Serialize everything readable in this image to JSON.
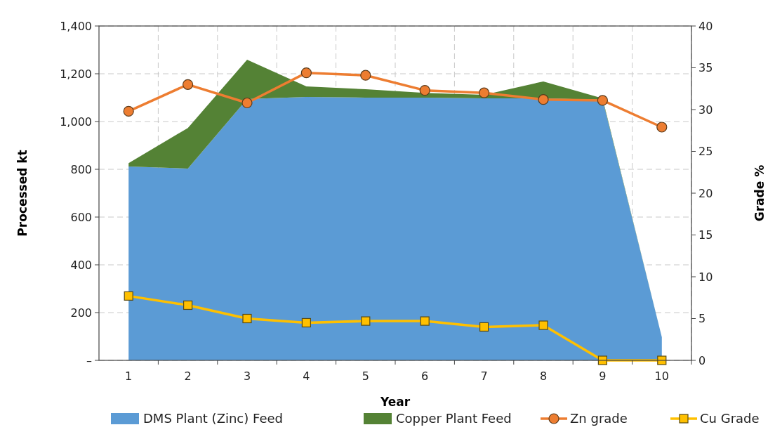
{
  "chart_data": {
    "type": "area",
    "xlabel": "Year",
    "ylabel": "Processed kt",
    "y2label": "Grade %",
    "categories": [
      "1",
      "2",
      "3",
      "4",
      "5",
      "6",
      "7",
      "8",
      "9",
      "10"
    ],
    "stacked": true,
    "grid": true,
    "legend": "bottom",
    "ylim": [
      0,
      1400
    ],
    "yticks": [
      {
        "value": 0,
        "label": "–"
      },
      {
        "value": 200,
        "label": "200"
      },
      {
        "value": 400,
        "label": "400"
      },
      {
        "value": 600,
        "label": "600"
      },
      {
        "value": 800,
        "label": "800"
      },
      {
        "value": 1000,
        "label": "1,000"
      },
      {
        "value": 1200,
        "label": "1,200"
      },
      {
        "value": 1400,
        "label": "1,400"
      }
    ],
    "y2lim": [
      0,
      40
    ],
    "y2ticks": [
      0,
      5,
      10,
      15,
      20,
      25,
      30,
      35,
      40
    ],
    "series": [
      {
        "name": "DMS Plant (Zinc) Feed",
        "color": "#5b9bd5",
        "values": [
          812,
          803,
          1094,
          1103,
          1100,
          1100,
          1097,
          1097,
          1091,
          97
        ]
      },
      {
        "name": "Copper Plant Feed",
        "color": "#548235",
        "values": [
          14,
          170,
          165,
          44,
          35,
          20,
          15,
          71,
          6,
          0
        ]
      },
      {
        "name": "Zn grade",
        "type": "line",
        "axis": "y2",
        "marker": "circle",
        "color": "#ed7d31",
        "values": [
          29.8,
          33.0,
          30.8,
          34.4,
          34.1,
          32.3,
          32.0,
          31.2,
          31.1,
          27.9
        ]
      },
      {
        "name": "Cu Grade",
        "type": "line",
        "axis": "y2",
        "marker": "square",
        "color": "#ffc000",
        "values": [
          7.7,
          6.6,
          5.0,
          4.5,
          4.7,
          4.7,
          4.0,
          4.2,
          0,
          0
        ]
      }
    ]
  }
}
